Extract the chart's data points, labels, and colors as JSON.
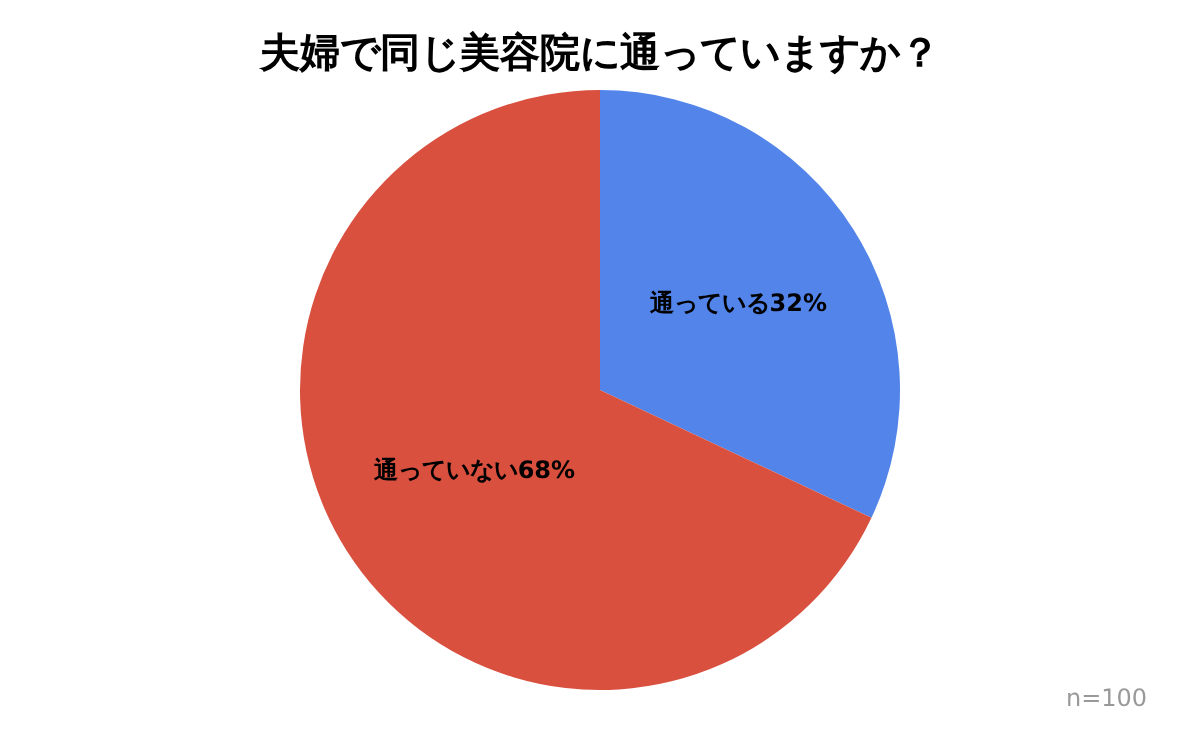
{
  "chart_data": {
    "type": "pie",
    "title": "夫婦で同じ美容院に通っていますか？",
    "categories": [
      "通っている",
      "通っていない"
    ],
    "values": [
      32,
      68
    ],
    "colors": [
      "#5284ea",
      "#d9503f"
    ],
    "value_labels": [
      "32%",
      "68%"
    ],
    "legend": false,
    "annotations": [
      "n=100"
    ]
  }
}
